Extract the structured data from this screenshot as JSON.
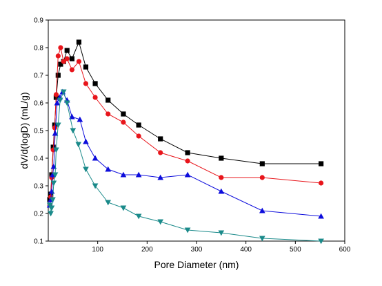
{
  "chart_data": {
    "type": "line",
    "title": "",
    "xlabel": "Pore Diameter (nm)",
    "ylabel": "dV/d(logD) (mL/g)",
    "xlim": [
      0,
      600
    ],
    "ylim": [
      0.1,
      0.9
    ],
    "x_ticks": [
      "100",
      "200",
      "300",
      "400",
      "500",
      "600"
    ],
    "y_ticks": [
      "0.1",
      "0.2",
      "0.3",
      "0.4",
      "0.5",
      "0.6",
      "0.7",
      "0.8",
      "0.9"
    ],
    "grid": false,
    "legend": "none",
    "series": [
      {
        "color": "#000000",
        "marker": "square",
        "points": [
          [
            3,
            0.25
          ],
          [
            5,
            0.27
          ],
          [
            7,
            0.34
          ],
          [
            10,
            0.44
          ],
          [
            13,
            0.52
          ],
          [
            16,
            0.62
          ],
          [
            20,
            0.7
          ],
          [
            25,
            0.74
          ],
          [
            31,
            0.75
          ],
          [
            38,
            0.79
          ],
          [
            48,
            0.76
          ],
          [
            62,
            0.82
          ],
          [
            76,
            0.73
          ],
          [
            95,
            0.67
          ],
          [
            121,
            0.61
          ],
          [
            152,
            0.56
          ],
          [
            183,
            0.52
          ],
          [
            227,
            0.47
          ],
          [
            282,
            0.42
          ],
          [
            350,
            0.4
          ],
          [
            433,
            0.38
          ],
          [
            552,
            0.38
          ]
        ]
      },
      {
        "color": "#e8151b",
        "marker": "circle",
        "points": [
          [
            3,
            0.23
          ],
          [
            5,
            0.26
          ],
          [
            7,
            0.33
          ],
          [
            10,
            0.43
          ],
          [
            13,
            0.51
          ],
          [
            16,
            0.63
          ],
          [
            20,
            0.77
          ],
          [
            25,
            0.8
          ],
          [
            31,
            0.75
          ],
          [
            38,
            0.76
          ],
          [
            48,
            0.72
          ],
          [
            62,
            0.75
          ],
          [
            76,
            0.67
          ],
          [
            95,
            0.62
          ],
          [
            121,
            0.56
          ],
          [
            152,
            0.53
          ],
          [
            183,
            0.48
          ],
          [
            227,
            0.42
          ],
          [
            282,
            0.39
          ],
          [
            350,
            0.33
          ],
          [
            433,
            0.33
          ],
          [
            552,
            0.31
          ]
        ]
      },
      {
        "color": "#0d0ddc",
        "marker": "triangle-up",
        "points": [
          [
            3,
            0.23
          ],
          [
            5,
            0.25
          ],
          [
            7,
            0.28
          ],
          [
            9,
            0.34
          ],
          [
            11,
            0.37
          ],
          [
            14,
            0.49
          ],
          [
            18,
            0.6
          ],
          [
            23,
            0.62
          ],
          [
            29,
            0.64
          ],
          [
            38,
            0.61
          ],
          [
            48,
            0.55
          ],
          [
            64,
            0.54
          ],
          [
            76,
            0.46
          ],
          [
            95,
            0.4
          ],
          [
            121,
            0.36
          ],
          [
            152,
            0.34
          ],
          [
            183,
            0.34
          ],
          [
            227,
            0.33
          ],
          [
            282,
            0.34
          ],
          [
            350,
            0.28
          ],
          [
            433,
            0.21
          ],
          [
            552,
            0.19
          ]
        ]
      },
      {
        "color": "#1a8a8a",
        "marker": "triangle-down",
        "points": [
          [
            3,
            0.23
          ],
          [
            5,
            0.2
          ],
          [
            7,
            0.22
          ],
          [
            9,
            0.25
          ],
          [
            11,
            0.31
          ],
          [
            14,
            0.34
          ],
          [
            16,
            0.43
          ],
          [
            20,
            0.52
          ],
          [
            24,
            0.61
          ],
          [
            31,
            0.64
          ],
          [
            38,
            0.6
          ],
          [
            50,
            0.5
          ],
          [
            61,
            0.45
          ],
          [
            76,
            0.36
          ],
          [
            95,
            0.3
          ],
          [
            121,
            0.24
          ],
          [
            152,
            0.22
          ],
          [
            183,
            0.19
          ],
          [
            227,
            0.17
          ],
          [
            282,
            0.14
          ],
          [
            350,
            0.13
          ],
          [
            433,
            0.11
          ],
          [
            552,
            0.1
          ]
        ]
      }
    ]
  }
}
